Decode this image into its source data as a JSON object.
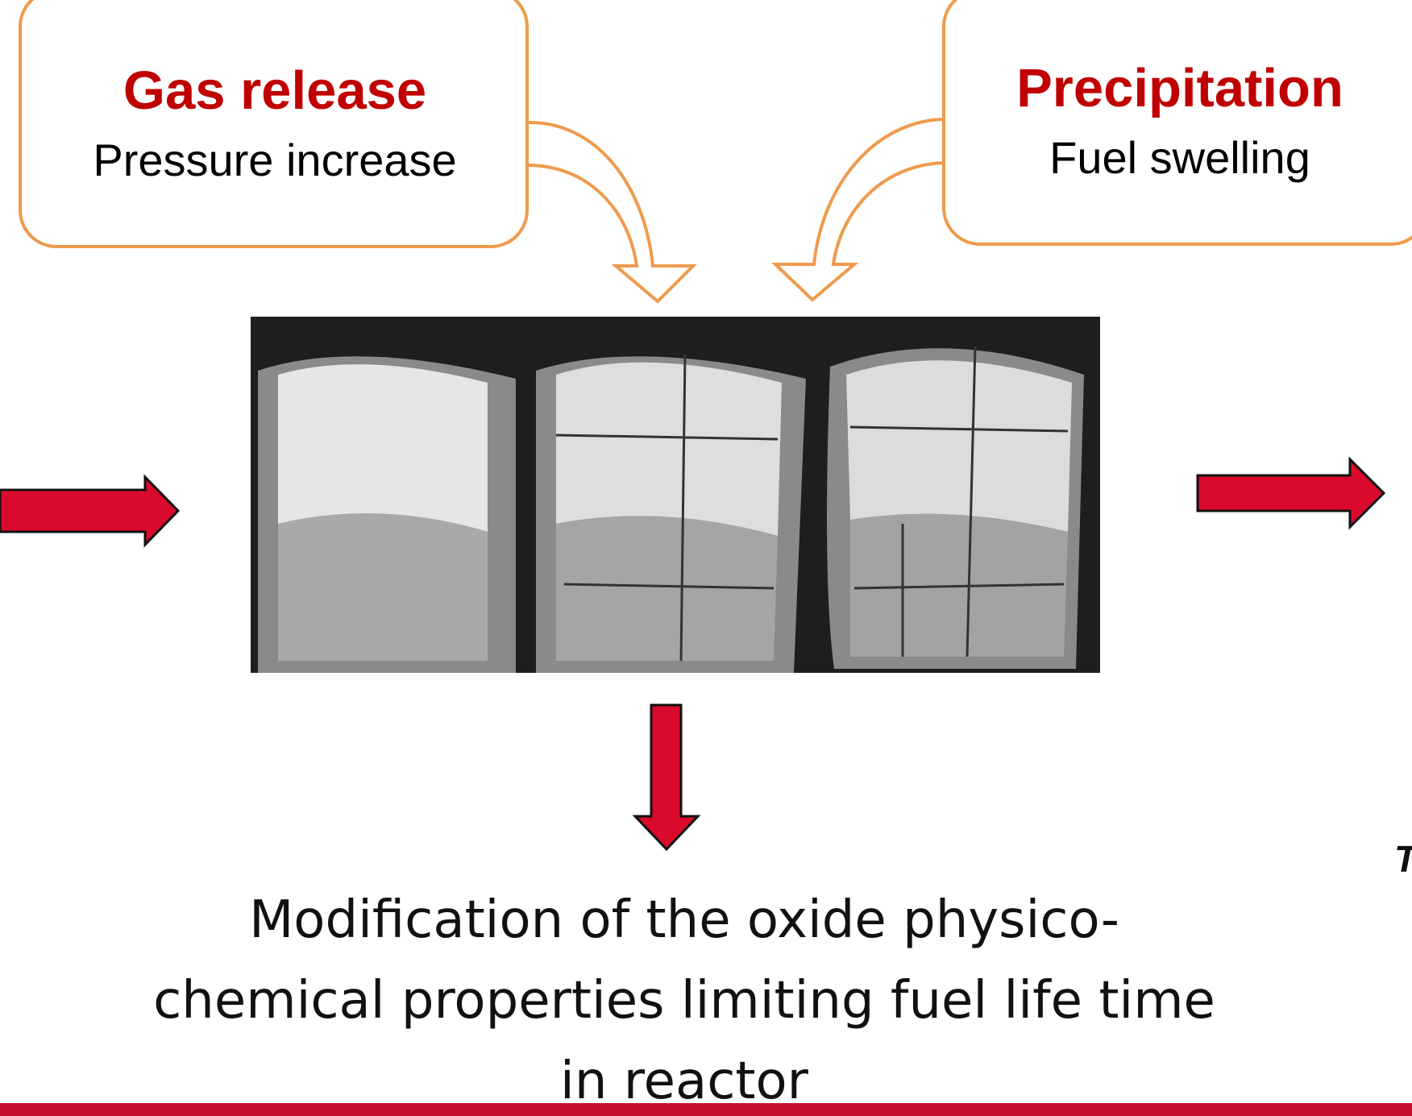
{
  "boxes": [
    {
      "title": "Gas release",
      "subtitle": "Pressure increase"
    },
    {
      "title": "Precipitation",
      "subtitle": "Fuel swelling"
    }
  ],
  "conclusion": {
    "lines": [
      "Modification of the oxide physico-",
      "chemical properties limiting fuel life time",
      "in reactor"
    ]
  },
  "edge_text": "T"
}
